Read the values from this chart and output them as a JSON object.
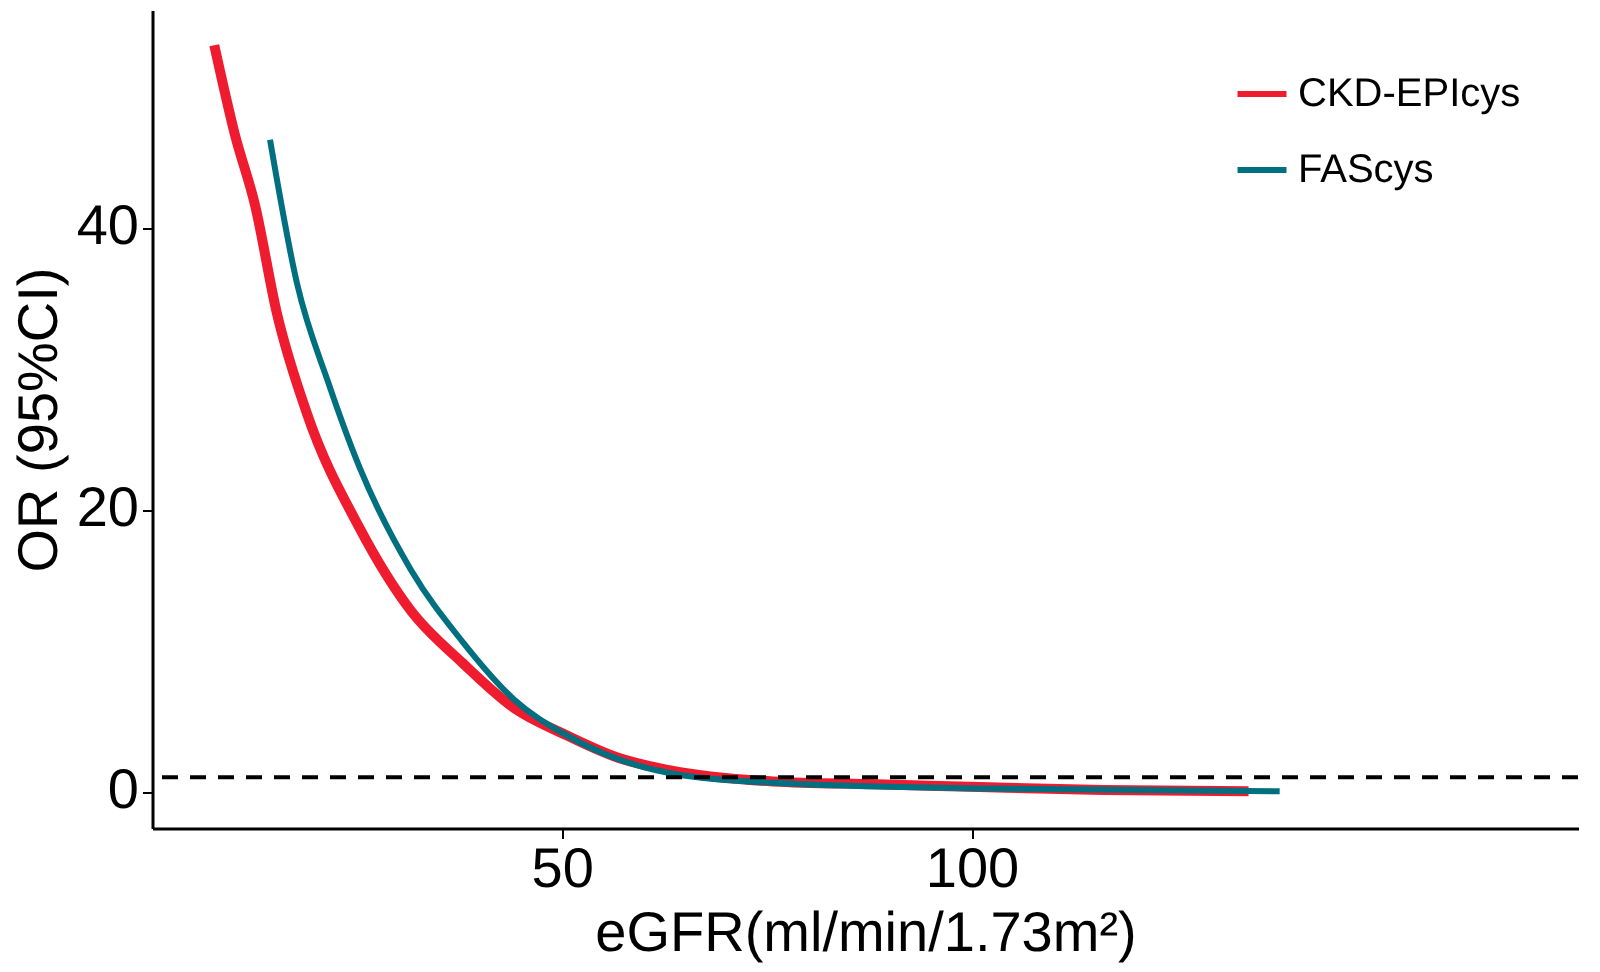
{
  "chart_data": {
    "type": "line",
    "xlabel": "eGFR(ml/min/1.73m²)",
    "ylabel": "OR (95%CI)",
    "xlim": [
      0,
      174
    ],
    "ylim": [
      -2.6,
      55.4
    ],
    "xticks": [
      50,
      100
    ],
    "yticks": [
      0,
      20,
      40
    ],
    "grid": false,
    "legend": "top right",
    "line_style": "solid",
    "marker": "none",
    "series": [
      {
        "name": "CKD-EPIcys",
        "color": "#ee1c2e",
        "x": [
          7.6,
          10.1,
          12.6,
          15.2,
          18.9,
          25.3,
          31.6,
          37.9,
          44.2,
          50.5,
          56.8,
          63.1,
          75.8,
          88.4,
          101,
          116,
          133.8
        ],
        "values": [
          52.9,
          46.6,
          41.5,
          34,
          26.8,
          18.7,
          12.8,
          9.1,
          5.9,
          4.0,
          2.4,
          1.5,
          0.7,
          0.5,
          0.3,
          0.1,
          0
        ]
      },
      {
        "name": "FAScys",
        "color": "#007080",
        "x": [
          14.4,
          17.7,
          21.5,
          25.3,
          31.6,
          37.9,
          44.2,
          50.5,
          63.1,
          75.8,
          101,
          137.6
        ],
        "values": [
          46.2,
          36,
          29,
          23,
          15.7,
          10.6,
          6.5,
          4.0,
          1.3,
          0.6,
          0.2,
          0
        ]
      }
    ],
    "ref_lines": [
      {
        "axis": "y",
        "value": 1,
        "color": "#000000",
        "line_style": "dashed"
      }
    ]
  }
}
